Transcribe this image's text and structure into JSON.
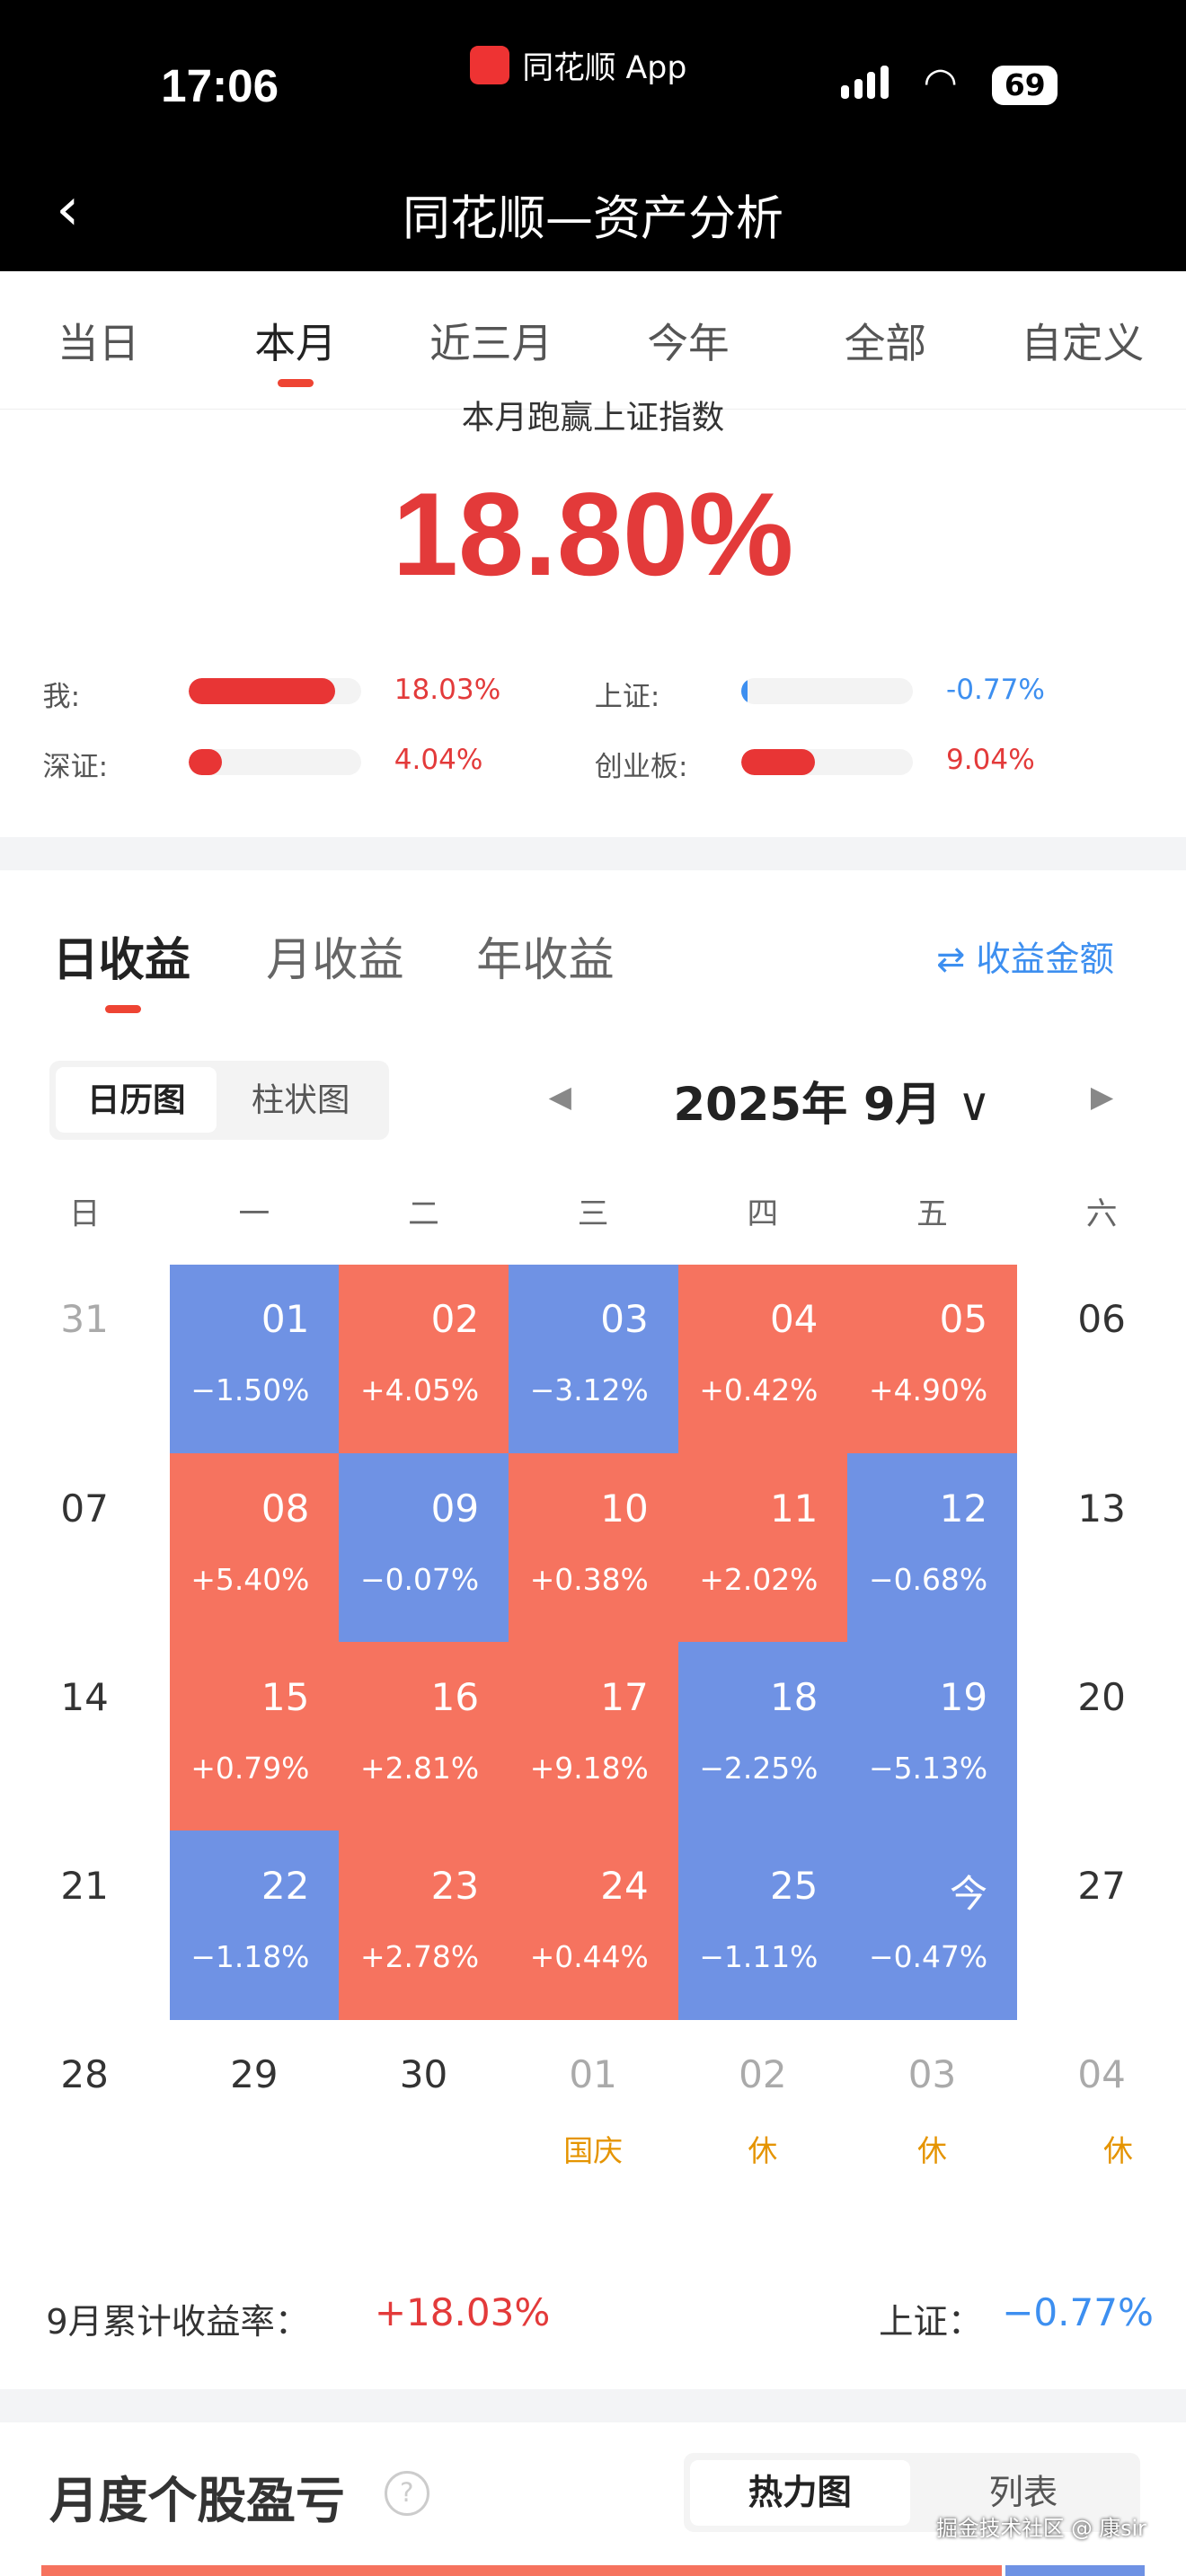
{
  "status": {
    "time": "17:06",
    "app": "同花顺 App",
    "battery": "69"
  },
  "header": {
    "title": "同花顺—资产分析"
  },
  "period_tabs": [
    "当日",
    "本月",
    "近三月",
    "今年",
    "全部",
    "自定义"
  ],
  "active_period": "本月",
  "summary": {
    "subtitle": "本月跑赢上证指数",
    "value": "18.80%",
    "bars": [
      {
        "label": "我:",
        "value": "18.03%",
        "fill": 0.85,
        "color": "#e83535"
      },
      {
        "label": "上证:",
        "value": "-0.77%",
        "fill": 0.04,
        "color": "#3d8ff0"
      },
      {
        "label": "深证:",
        "value": "4.04%",
        "fill": 0.19,
        "color": "#e83535"
      },
      {
        "label": "创业板:",
        "value": "9.04%",
        "fill": 0.43,
        "color": "#e83535"
      }
    ]
  },
  "returns_tabs": [
    "日收益",
    "月收益",
    "年收益"
  ],
  "toggle_label": "收益金额",
  "view_modes": [
    "日历图",
    "柱状图"
  ],
  "month_title": "2025年 9月",
  "weekdays": [
    "日",
    "一",
    "二",
    "三",
    "四",
    "五",
    "六"
  ],
  "calendar": [
    [
      "31",
      {
        "d": "01",
        "p": "−1.50%"
      },
      {
        "d": "02",
        "p": "+4.05%"
      },
      {
        "d": "03",
        "p": "−3.12%"
      },
      {
        "d": "04",
        "p": "+0.42%"
      },
      {
        "d": "05",
        "p": "+4.90%"
      },
      "06"
    ],
    [
      "07",
      {
        "d": "08",
        "p": "+5.40%"
      },
      {
        "d": "09",
        "p": "−0.07%"
      },
      {
        "d": "10",
        "p": "+0.38%"
      },
      {
        "d": "11",
        "p": "+2.02%"
      },
      {
        "d": "12",
        "p": "−0.68%"
      },
      "13"
    ],
    [
      "14",
      {
        "d": "15",
        "p": "+0.79%"
      },
      {
        "d": "16",
        "p": "+2.81%"
      },
      {
        "d": "17",
        "p": "+9.18%"
      },
      {
        "d": "18",
        "p": "−2.25%"
      },
      {
        "d": "19",
        "p": "−5.13%"
      },
      "20"
    ],
    [
      "21",
      {
        "d": "22",
        "p": "−1.18%"
      },
      {
        "d": "23",
        "p": "+2.78%"
      },
      {
        "d": "24",
        "p": "+0.44%"
      },
      {
        "d": "25",
        "p": "−1.11%"
      },
      {
        "d": "今",
        "p": "−0.47%"
      },
      "27"
    ]
  ],
  "last_row": [
    {
      "d": "28"
    },
    {
      "d": "29"
    },
    {
      "d": "30"
    },
    {
      "d": "01",
      "h": "国庆"
    },
    {
      "d": "02",
      "h": "休"
    },
    {
      "d": "03",
      "h": "休"
    },
    {
      "d": "04",
      "h": "休"
    }
  ],
  "colors": {
    "gain": "#f6735f",
    "loss": "#6f92e4",
    "red": "#e33a3a",
    "blue": "#3d8ff0"
  },
  "month_summary": {
    "label": "9月累计收益率：",
    "value": "+18.03%",
    "index_label": "上证：",
    "index_value": "−0.77%"
  },
  "stocks_section": {
    "title": "月度个股盈亏",
    "modes": [
      "热力图",
      "列表"
    ]
  },
  "watermark": "掘金技术社区 @ 康sir"
}
